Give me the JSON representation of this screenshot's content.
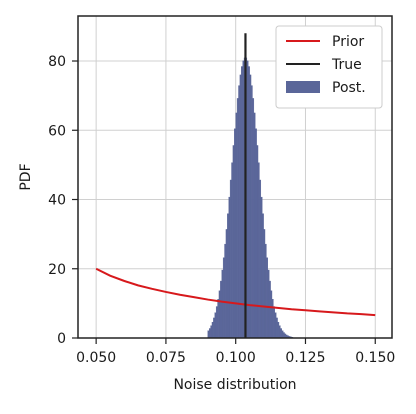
{
  "chart_data": {
    "type": "histogram",
    "xlabel": "Noise distribution",
    "ylabel": "PDF",
    "xlim": [
      0.0435,
      0.156
    ],
    "ylim": [
      0,
      93
    ],
    "xticks": [
      0.05,
      0.075,
      0.1,
      0.125,
      0.15
    ],
    "xtick_labels": [
      "0.050",
      "0.075",
      "0.100",
      "0.125",
      "0.150"
    ],
    "yticks": [
      0,
      20,
      40,
      60,
      80
    ],
    "ytick_labels": [
      "0",
      "20",
      "40",
      "60",
      "80"
    ],
    "grid": true,
    "legend_placement": "top-right",
    "series": [
      {
        "name": "Prior",
        "kind": "line",
        "color": "#d7191c",
        "x": [
          0.05,
          0.055,
          0.06,
          0.065,
          0.07,
          0.075,
          0.08,
          0.085,
          0.09,
          0.095,
          0.1,
          0.105,
          0.11,
          0.115,
          0.12,
          0.125,
          0.13,
          0.135,
          0.14,
          0.145,
          0.15
        ],
        "y": [
          20.0,
          18.0,
          16.5,
          15.2,
          14.2,
          13.3,
          12.5,
          11.8,
          11.1,
          10.5,
          10.0,
          9.5,
          9.1,
          8.7,
          8.3,
          8.0,
          7.7,
          7.4,
          7.1,
          6.9,
          6.6
        ]
      },
      {
        "name": "True",
        "kind": "vline",
        "color": "#222222",
        "x": 0.1035,
        "y_range": [
          0,
          88
        ]
      },
      {
        "name": "Post.",
        "kind": "histogram",
        "color": "#5a6699",
        "mean": 0.1035,
        "std": 0.0049,
        "peak": 81,
        "bin_start": 0.09,
        "bin_end": 0.1205,
        "bins": 61
      }
    ]
  }
}
